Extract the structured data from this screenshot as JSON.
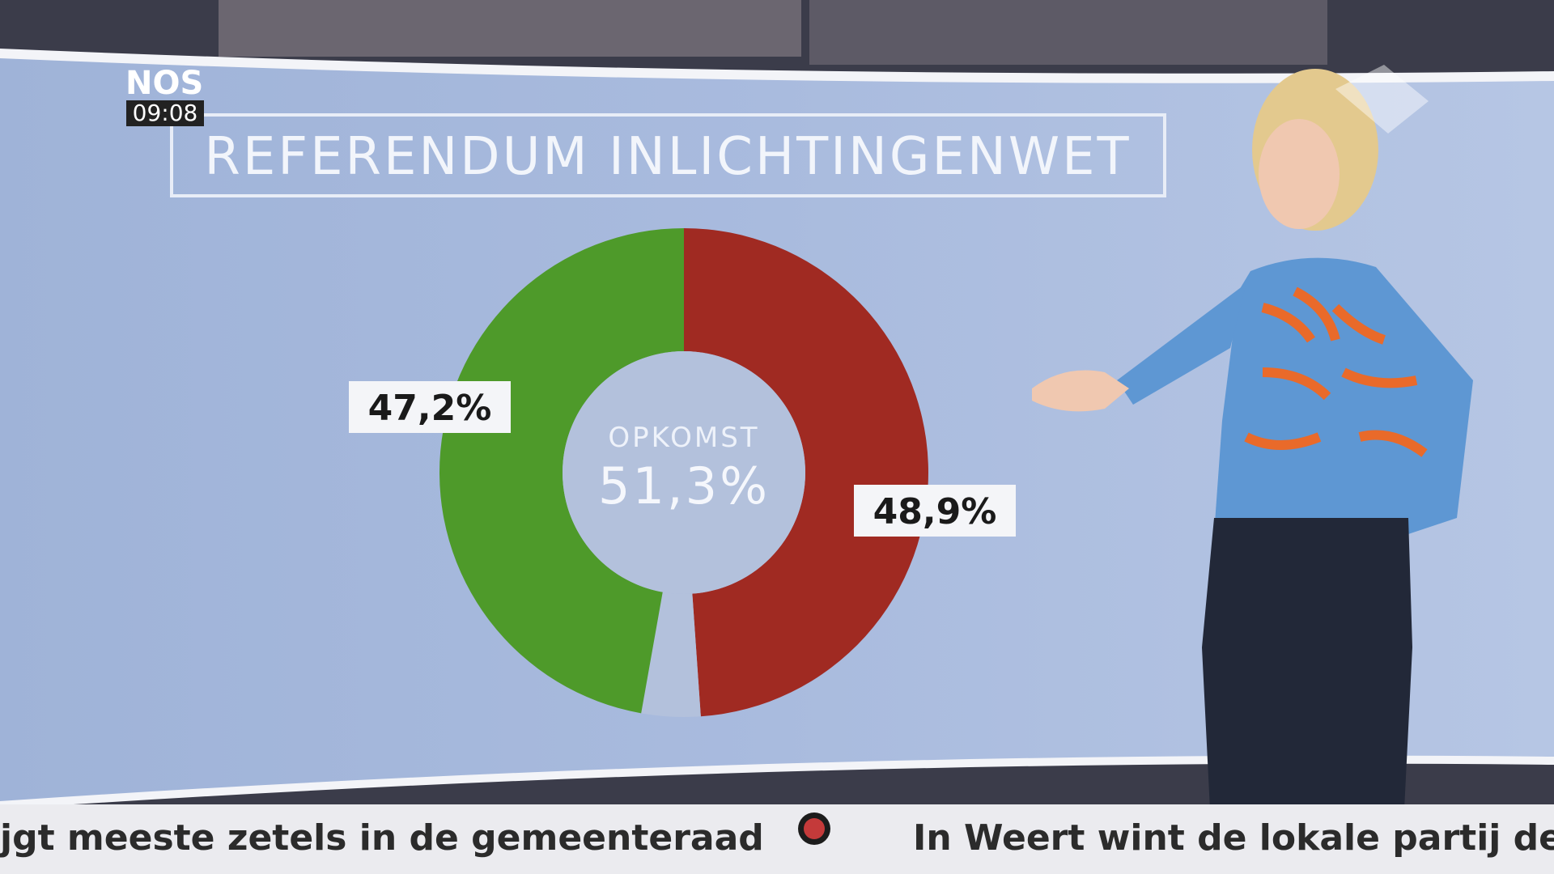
{
  "broadcast": {
    "logo": "NOS",
    "time": "09:08",
    "ticker": [
      "jgt meeste zetels in de gemeenteraad",
      "In Weert wint de lokale partij de m"
    ]
  },
  "chart_data": {
    "type": "donut",
    "title": "REFERENDUM INLICHTINGENWET",
    "values": [
      48.9,
      3.9,
      47.2
    ],
    "value_labels": [
      "48,9%",
      null,
      "47,2%"
    ],
    "colors": [
      "#a02a22",
      "#b3c1dc",
      "#4e9a2a"
    ],
    "center_title": "OPKOMST",
    "center_value": {
      "value": 51.3,
      "label": "51,3%"
    }
  }
}
